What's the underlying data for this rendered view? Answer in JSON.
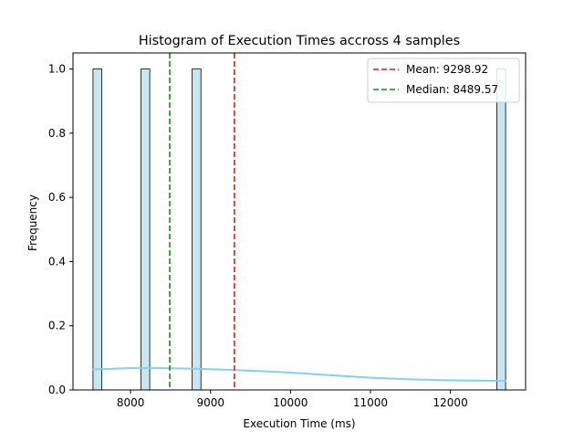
{
  "chart_data": {
    "type": "histogram",
    "title": "Histogram of Execution Times accross 4 samples",
    "xlabel": "Execution Time (ms)",
    "ylabel": "Frequency",
    "xlim": [
      7280,
      12940
    ],
    "ylim": [
      0,
      1.05
    ],
    "xticks": [
      8000,
      9000,
      10000,
      11000,
      12000
    ],
    "yticks": [
      "0.0",
      "0.2",
      "0.4",
      "0.6",
      "0.8",
      "1.0"
    ],
    "bins": [
      {
        "x0": 7530,
        "x1": 7640,
        "count": 1
      },
      {
        "x0": 8130,
        "x1": 8240,
        "count": 1
      },
      {
        "x0": 8770,
        "x1": 8880,
        "count": 1
      },
      {
        "x0": 12580,
        "x1": 12690,
        "count": 1
      }
    ],
    "kde": {
      "x": [
        7530,
        8000,
        8400,
        8800,
        9200,
        9600,
        10000,
        10500,
        11000,
        11500,
        12000,
        12690
      ],
      "y": [
        0.064,
        0.068,
        0.068,
        0.066,
        0.063,
        0.059,
        0.054,
        0.046,
        0.038,
        0.033,
        0.03,
        0.028
      ]
    },
    "reference_lines": [
      {
        "label": "Mean: 9298.92",
        "value": 9298.92,
        "color": "#e41a1c",
        "style": "dashed"
      },
      {
        "label": "Median: 8489.57",
        "value": 8489.57,
        "color": "#1a8a1a",
        "style": "dashed"
      }
    ],
    "bar_fill": "#c6e6f2",
    "kde_color": "#87ceeb",
    "grid": false,
    "legend_position": "top-right"
  }
}
